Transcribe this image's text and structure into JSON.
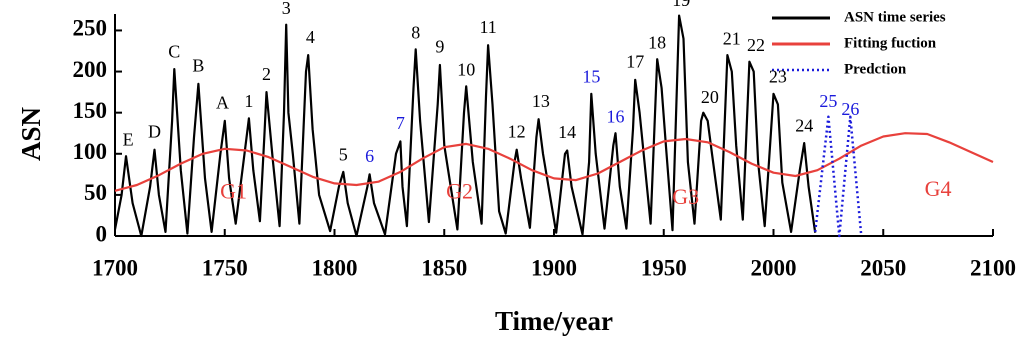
{
  "chart_data": {
    "type": "line",
    "x_label": "Time/year",
    "y_label": "ASN",
    "xlim": [
      1700,
      2100
    ],
    "xticks": [
      1700,
      1750,
      1800,
      1850,
      1900,
      1950,
      2000,
      2050,
      2100
    ],
    "ylim": [
      0,
      270
    ],
    "yticks": [
      0,
      50,
      100,
      150,
      200,
      250
    ],
    "legend": "top-right",
    "series": [
      {
        "name": "ASN time series",
        "color": "#000000",
        "dash": "solid",
        "x": [
          1700,
          1703,
          1705,
          1708,
          1712,
          1716,
          1718,
          1720,
          1723,
          1726,
          1727,
          1730,
          1733,
          1736,
          1738,
          1741,
          1744,
          1748,
          1750,
          1752,
          1755,
          1759,
          1761,
          1763,
          1766,
          1768,
          1769,
          1772,
          1775,
          1777,
          1778,
          1779,
          1781,
          1784,
          1787,
          1788,
          1790,
          1793,
          1798,
          1802,
          1804,
          1806,
          1810,
          1815,
          1816,
          1818,
          1823,
          1828,
          1830,
          1831,
          1833,
          1836,
          1837,
          1839,
          1843,
          1847,
          1848,
          1850,
          1856,
          1859,
          1860,
          1863,
          1867,
          1869,
          1870,
          1872,
          1875,
          1878,
          1882,
          1883,
          1885,
          1889,
          1892,
          1893,
          1895,
          1901,
          1905,
          1906,
          1908,
          1913,
          1916,
          1917,
          1919,
          1923,
          1927,
          1928,
          1930,
          1933,
          1936,
          1937,
          1939,
          1944,
          1947,
          1949,
          1951,
          1954,
          1957,
          1959,
          1961,
          1964,
          1967,
          1968,
          1970,
          1972,
          1976,
          1979,
          1981,
          1983,
          1986,
          1989,
          1991,
          1993,
          1996,
          2000,
          2002,
          2004,
          2008,
          2012,
          2014,
          2016,
          2019
        ],
        "values": [
          8,
          50,
          97,
          40,
          0,
          60,
          105,
          50,
          5,
          140,
          203,
          80,
          3,
          120,
          185,
          70,
          5,
          100,
          140,
          70,
          15,
          100,
          143,
          80,
          18,
          120,
          175,
          90,
          12,
          150,
          257,
          150,
          100,
          15,
          200,
          220,
          130,
          50,
          6,
          60,
          78,
          40,
          0,
          60,
          75,
          40,
          2,
          100,
          115,
          60,
          12,
          180,
          227,
          140,
          17,
          160,
          208,
          110,
          8,
          150,
          182,
          90,
          15,
          170,
          232,
          160,
          30,
          3,
          90,
          105,
          70,
          10,
          120,
          142,
          100,
          4,
          100,
          104,
          60,
          2,
          90,
          173,
          100,
          9,
          110,
          125,
          60,
          9,
          130,
          190,
          150,
          15,
          215,
          180,
          110,
          7,
          268,
          240,
          90,
          15,
          140,
          150,
          140,
          100,
          20,
          220,
          200,
          110,
          20,
          212,
          200,
          90,
          12,
          173,
          160,
          65,
          5,
          80,
          113,
          60,
          4
        ]
      },
      {
        "name": "Fitting fuction",
        "color": "#e8413c",
        "dash": "solid",
        "x": [
          1700,
          1710,
          1720,
          1730,
          1740,
          1750,
          1760,
          1770,
          1780,
          1790,
          1800,
          1810,
          1820,
          1830,
          1840,
          1850,
          1860,
          1870,
          1880,
          1890,
          1900,
          1910,
          1920,
          1930,
          1940,
          1950,
          1960,
          1970,
          1980,
          1990,
          2000,
          2010,
          2020,
          2030,
          2040,
          2050,
          2060,
          2070,
          2080,
          2090,
          2100
        ],
        "values": [
          55,
          62,
          74,
          88,
          100,
          106,
          104,
          96,
          84,
          72,
          64,
          62,
          66,
          78,
          94,
          108,
          112,
          106,
          94,
          80,
          70,
          68,
          76,
          90,
          104,
          115,
          118,
          114,
          102,
          88,
          77,
          73,
          80,
          94,
          110,
          121,
          125,
          124,
          114,
          102,
          90
        ]
      },
      {
        "name": "Predction",
        "color": "#1a1adb",
        "dash": "dotted",
        "x": [
          2019,
          2025,
          2030,
          2035,
          2040
        ],
        "values": [
          5,
          145,
          0,
          145,
          0
        ]
      }
    ],
    "annotations": [
      {
        "text": "E",
        "color": "#000000"
      },
      {
        "text": "D",
        "color": "#000000"
      },
      {
        "text": "C",
        "color": "#000000"
      },
      {
        "text": "B",
        "color": "#000000"
      },
      {
        "text": "A",
        "color": "#000000"
      },
      {
        "text": "1",
        "color": "#000000"
      },
      {
        "text": "2",
        "color": "#000000"
      },
      {
        "text": "3",
        "color": "#000000"
      },
      {
        "text": "4",
        "color": "#000000"
      },
      {
        "text": "5",
        "color": "#000000"
      },
      {
        "text": "6",
        "color": "#1a1adb"
      },
      {
        "text": "7",
        "color": "#1a1adb"
      },
      {
        "text": "8",
        "color": "#000000"
      },
      {
        "text": "9",
        "color": "#000000"
      },
      {
        "text": "10",
        "color": "#000000"
      },
      {
        "text": "11",
        "color": "#000000"
      },
      {
        "text": "12",
        "color": "#000000"
      },
      {
        "text": "13",
        "color": "#000000"
      },
      {
        "text": "14",
        "color": "#000000"
      },
      {
        "text": "15",
        "color": "#1a1adb"
      },
      {
        "text": "16",
        "color": "#1a1adb"
      },
      {
        "text": "17",
        "color": "#000000"
      },
      {
        "text": "18",
        "color": "#000000"
      },
      {
        "text": "19",
        "color": "#000000"
      },
      {
        "text": "20",
        "color": "#000000"
      },
      {
        "text": "21",
        "color": "#000000"
      },
      {
        "text": "22",
        "color": "#000000"
      },
      {
        "text": "23",
        "color": "#000000"
      },
      {
        "text": "24",
        "color": "#000000"
      },
      {
        "text": "25",
        "color": "#1a1adb"
      },
      {
        "text": "26",
        "color": "#1a1adb"
      },
      {
        "text": "G1",
        "color": "#e8413c"
      },
      {
        "text": "G2",
        "color": "#e8413c"
      },
      {
        "text": "G3",
        "color": "#e8413c"
      },
      {
        "text": "G4",
        "color": "#e8413c"
      }
    ]
  }
}
